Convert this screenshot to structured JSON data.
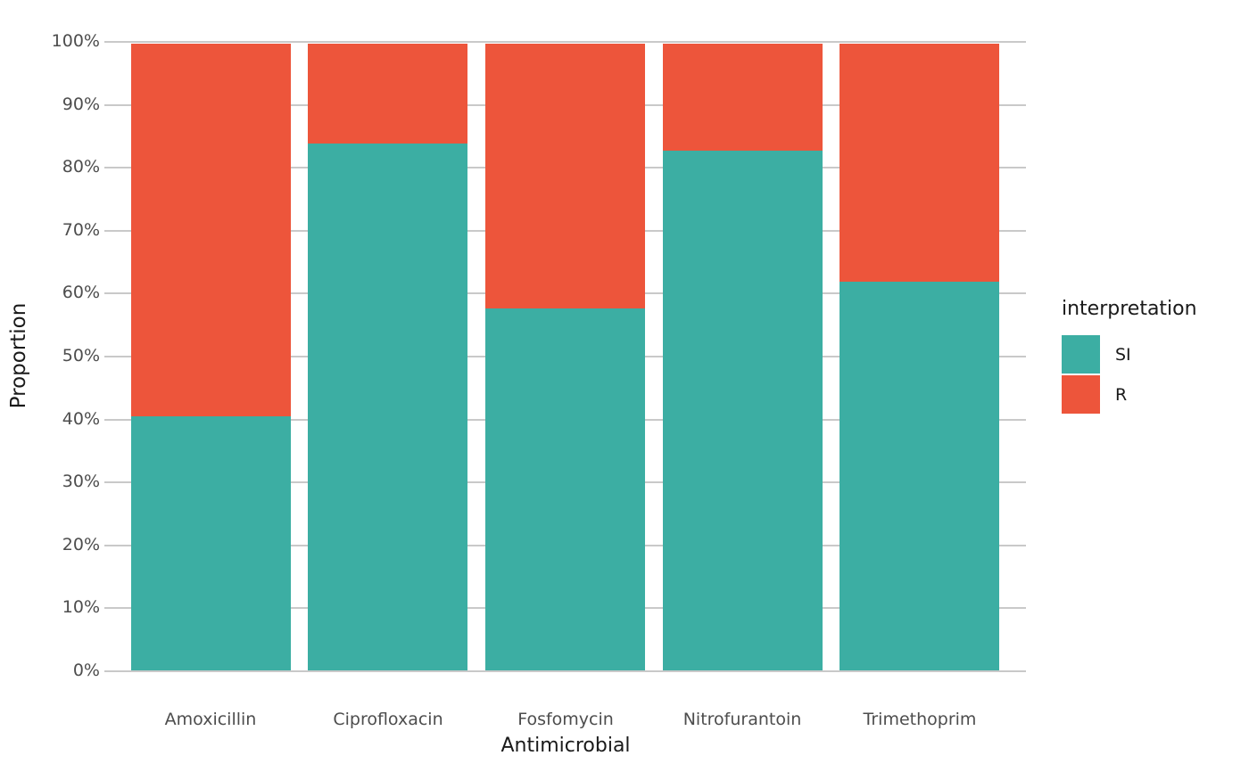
{
  "chart_data": {
    "type": "bar",
    "stacking": "percent",
    "title": "",
    "xlabel": "Antimicrobial",
    "ylabel": "Proportion",
    "categories": [
      "Amoxicillin",
      "Ciprofloxacin",
      "Fosfomycin",
      "Nitrofurantoin",
      "Trimethoprim"
    ],
    "series": [
      {
        "name": "SI",
        "color": "#3CAEA3",
        "values": [
          40.5,
          84.0,
          57.8,
          83.0,
          62.0
        ]
      },
      {
        "name": "R",
        "color": "#ED553B",
        "values": [
          59.5,
          16.0,
          42.2,
          17.0,
          38.0
        ]
      }
    ],
    "ylim": [
      0,
      100
    ],
    "y_tick_labels": [
      "0%",
      "10%",
      "20%",
      "30%",
      "40%",
      "50%",
      "60%",
      "70%",
      "80%",
      "90%",
      "100%"
    ],
    "grid": "horizontal-major-only",
    "legend": {
      "title": "interpretation",
      "position": "right",
      "entries": [
        "SI",
        "R"
      ]
    }
  },
  "colors": {
    "si_fill": "#3CAEA3",
    "r_fill": "#ED553B",
    "gridline": "#C9C9C9",
    "tick_label": "#4D4D4D",
    "axis_title": "#1A1A1A",
    "background": "#FFFFFF"
  }
}
